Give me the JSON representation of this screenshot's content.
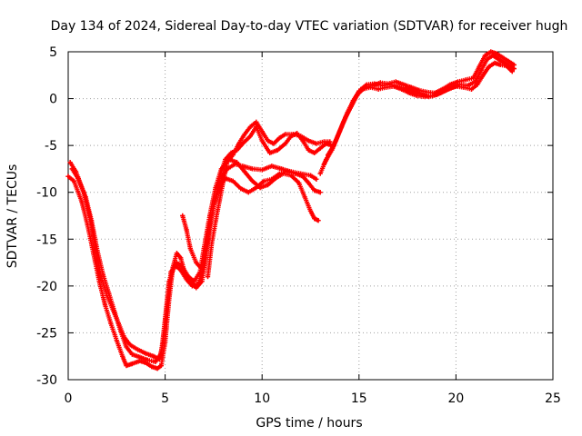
{
  "chart_data": {
    "type": "scatter",
    "title": "Day 134 of 2024, Sidereal Day-to-day VTEC variation (SDTVAR) for receiver hugh",
    "xlabel": "GPS time / hours",
    "ylabel": "SDTVAR / TECUs",
    "xlim": [
      0,
      25
    ],
    "ylim": [
      -30,
      5
    ],
    "xticks": [
      0,
      5,
      10,
      15,
      20,
      25
    ],
    "yticks": [
      5,
      0,
      -5,
      -10,
      -15,
      -20,
      -25,
      -30
    ],
    "grid": true,
    "marker": "+",
    "color": "#ff0000",
    "series": [
      {
        "points": [
          [
            0.0,
            -8.3
          ],
          [
            0.3,
            -8.8
          ],
          [
            0.7,
            -11.0
          ],
          [
            1.0,
            -13.5
          ],
          [
            1.3,
            -16.5
          ],
          [
            1.6,
            -19.5
          ],
          [
            1.9,
            -22.0
          ],
          [
            2.2,
            -24.0
          ],
          [
            2.5,
            -25.8
          ],
          [
            2.8,
            -27.5
          ],
          [
            3.0,
            -28.5
          ],
          [
            3.3,
            -28.3
          ],
          [
            3.7,
            -28.0
          ],
          [
            4.0,
            -28.2
          ],
          [
            4.3,
            -28.6
          ],
          [
            4.6,
            -28.8
          ],
          [
            4.8,
            -28.5
          ],
          [
            5.0,
            -26.0
          ],
          [
            5.2,
            -21.5
          ],
          [
            5.4,
            -18.0
          ],
          [
            5.6,
            -16.5
          ],
          [
            5.8,
            -17.0
          ],
          [
            6.0,
            -18.5
          ],
          [
            6.3,
            -19.5
          ],
          [
            6.6,
            -20.2
          ],
          [
            6.9,
            -19.5
          ],
          [
            7.1,
            -17.0
          ],
          [
            7.3,
            -13.5
          ],
          [
            7.6,
            -10.5
          ],
          [
            7.9,
            -8.5
          ],
          [
            8.2,
            -7.5
          ],
          [
            8.6,
            -7.0
          ],
          [
            9.0,
            -7.2
          ],
          [
            9.5,
            -7.5
          ],
          [
            10.0,
            -7.6
          ],
          [
            10.5,
            -7.2
          ],
          [
            11.0,
            -7.5
          ],
          [
            11.5,
            -7.8
          ],
          [
            12.0,
            -8.0
          ],
          [
            12.5,
            -8.2
          ],
          [
            12.8,
            -8.6
          ]
        ]
      },
      {
        "points": [
          [
            0.1,
            -6.8
          ],
          [
            0.4,
            -7.8
          ],
          [
            0.8,
            -10.0
          ],
          [
            1.1,
            -12.5
          ],
          [
            1.4,
            -15.8
          ],
          [
            1.7,
            -19.0
          ],
          [
            2.0,
            -21.0
          ],
          [
            2.3,
            -22.5
          ],
          [
            2.6,
            -24.0
          ],
          [
            2.9,
            -25.5
          ],
          [
            3.2,
            -26.3
          ],
          [
            3.6,
            -26.8
          ],
          [
            4.0,
            -27.2
          ],
          [
            4.4,
            -27.5
          ],
          [
            4.7,
            -27.8
          ],
          [
            4.9,
            -26.0
          ],
          [
            5.1,
            -22.0
          ],
          [
            5.3,
            -18.5
          ],
          [
            5.6,
            -17.5
          ],
          [
            5.9,
            -18.0
          ],
          [
            6.2,
            -19.0
          ],
          [
            6.5,
            -19.5
          ],
          [
            6.8,
            -18.5
          ],
          [
            7.0,
            -16.0
          ],
          [
            7.3,
            -12.5
          ],
          [
            7.6,
            -9.5
          ],
          [
            7.9,
            -7.5
          ],
          [
            8.3,
            -6.5
          ],
          [
            8.7,
            -6.8
          ],
          [
            9.1,
            -7.8
          ],
          [
            9.5,
            -8.8
          ],
          [
            9.9,
            -9.5
          ],
          [
            10.3,
            -9.2
          ],
          [
            10.7,
            -8.5
          ],
          [
            11.1,
            -8.0
          ],
          [
            11.5,
            -8.2
          ],
          [
            11.9,
            -9.0
          ],
          [
            12.2,
            -10.5
          ],
          [
            12.5,
            -12.0
          ],
          [
            12.7,
            -12.8
          ],
          [
            12.9,
            -13.0
          ]
        ]
      },
      {
        "points": [
          [
            0.2,
            -7.5
          ],
          [
            0.5,
            -8.5
          ],
          [
            0.9,
            -10.5
          ],
          [
            1.2,
            -13.0
          ],
          [
            1.5,
            -16.2
          ],
          [
            1.8,
            -18.8
          ],
          [
            2.1,
            -20.8
          ],
          [
            2.4,
            -22.8
          ],
          [
            2.7,
            -24.8
          ],
          [
            3.0,
            -26.5
          ],
          [
            3.3,
            -27.3
          ],
          [
            3.7,
            -27.6
          ],
          [
            4.1,
            -27.9
          ],
          [
            4.5,
            -28.1
          ],
          [
            4.8,
            -27.2
          ],
          [
            5.0,
            -23.5
          ],
          [
            5.2,
            -19.5
          ],
          [
            5.5,
            -17.8
          ],
          [
            5.8,
            -18.3
          ],
          [
            6.1,
            -19.3
          ],
          [
            6.4,
            -20.0
          ],
          [
            6.7,
            -19.8
          ],
          [
            7.0,
            -17.8
          ],
          [
            7.2,
            -14.5
          ],
          [
            7.5,
            -11.5
          ],
          [
            7.8,
            -9.5
          ],
          [
            8.1,
            -8.5
          ],
          [
            8.5,
            -8.8
          ],
          [
            8.9,
            -9.6
          ],
          [
            9.3,
            -10.0
          ],
          [
            9.7,
            -9.5
          ],
          [
            10.1,
            -8.8
          ],
          [
            10.5,
            -8.6
          ],
          [
            10.9,
            -8.0
          ],
          [
            11.3,
            -7.8
          ],
          [
            11.7,
            -8.0
          ],
          [
            12.1,
            -8.3
          ],
          [
            12.4,
            -9.0
          ],
          [
            12.7,
            -9.8
          ],
          [
            13.0,
            -10.0
          ]
        ]
      },
      {
        "points": [
          [
            5.9,
            -12.5
          ],
          [
            6.1,
            -14.0
          ],
          [
            6.3,
            -16.0
          ],
          [
            6.6,
            -17.5
          ],
          [
            6.9,
            -18.2
          ],
          [
            7.2,
            -15.0
          ],
          [
            7.5,
            -11.5
          ],
          [
            7.8,
            -8.5
          ],
          [
            8.1,
            -6.5
          ],
          [
            8.4,
            -5.8
          ],
          [
            8.7,
            -5.5
          ],
          [
            9.0,
            -4.8
          ],
          [
            9.4,
            -4.0
          ],
          [
            9.7,
            -3.0
          ],
          [
            10.0,
            -4.5
          ],
          [
            10.4,
            -5.8
          ],
          [
            10.8,
            -5.5
          ],
          [
            11.2,
            -4.8
          ],
          [
            11.5,
            -4.0
          ],
          [
            11.8,
            -3.7
          ],
          [
            12.1,
            -4.5
          ],
          [
            12.4,
            -5.5
          ],
          [
            12.7,
            -5.8
          ],
          [
            13.0,
            -5.3
          ],
          [
            13.3,
            -4.8
          ],
          [
            13.6,
            -5.0
          ]
        ]
      },
      {
        "points": [
          [
            7.2,
            -19.0
          ],
          [
            7.4,
            -15.5
          ],
          [
            7.7,
            -12.0
          ],
          [
            8.0,
            -8.8
          ],
          [
            8.2,
            -6.8
          ],
          [
            8.5,
            -6.0
          ],
          [
            8.8,
            -4.8
          ],
          [
            9.1,
            -3.8
          ],
          [
            9.4,
            -3.0
          ],
          [
            9.7,
            -2.5
          ],
          [
            10.0,
            -3.5
          ],
          [
            10.3,
            -4.5
          ],
          [
            10.6,
            -4.8
          ],
          [
            10.9,
            -4.2
          ],
          [
            11.2,
            -3.8
          ],
          [
            11.6,
            -3.8
          ],
          [
            12.0,
            -4.0
          ],
          [
            12.4,
            -4.5
          ],
          [
            12.8,
            -4.8
          ],
          [
            13.2,
            -4.6
          ],
          [
            13.5,
            -4.6
          ]
        ]
      },
      {
        "points": [
          [
            13.0,
            -8.0
          ],
          [
            13.3,
            -6.5
          ],
          [
            13.6,
            -5.5
          ],
          [
            13.9,
            -4.0
          ],
          [
            14.2,
            -2.5
          ],
          [
            14.5,
            -1.2
          ],
          [
            14.8,
            0.0
          ],
          [
            15.1,
            1.0
          ],
          [
            15.4,
            1.5
          ],
          [
            15.8,
            1.6
          ],
          [
            16.2,
            1.4
          ],
          [
            16.6,
            1.5
          ],
          [
            17.0,
            1.3
          ],
          [
            17.4,
            1.1
          ],
          [
            17.8,
            0.8
          ],
          [
            18.2,
            0.5
          ],
          [
            18.6,
            0.2
          ],
          [
            19.0,
            0.4
          ],
          [
            19.4,
            0.8
          ],
          [
            19.8,
            1.2
          ],
          [
            20.2,
            1.5
          ],
          [
            20.6,
            1.4
          ],
          [
            21.0,
            1.8
          ],
          [
            21.3,
            3.0
          ],
          [
            21.6,
            4.2
          ],
          [
            21.9,
            4.6
          ],
          [
            22.2,
            4.2
          ],
          [
            22.5,
            3.8
          ],
          [
            22.8,
            3.4
          ],
          [
            23.0,
            3.2
          ]
        ]
      },
      {
        "points": [
          [
            13.2,
            -7.0
          ],
          [
            13.5,
            -5.8
          ],
          [
            13.8,
            -4.5
          ],
          [
            14.1,
            -3.0
          ],
          [
            14.4,
            -1.5
          ],
          [
            14.7,
            -0.2
          ],
          [
            15.0,
            0.8
          ],
          [
            15.3,
            1.2
          ],
          [
            15.7,
            1.4
          ],
          [
            16.1,
            1.7
          ],
          [
            16.5,
            1.6
          ],
          [
            16.9,
            1.8
          ],
          [
            17.3,
            1.5
          ],
          [
            17.7,
            1.2
          ],
          [
            18.1,
            0.9
          ],
          [
            18.5,
            0.7
          ],
          [
            18.9,
            0.6
          ],
          [
            19.3,
            1.0
          ],
          [
            19.7,
            1.5
          ],
          [
            20.1,
            1.8
          ],
          [
            20.5,
            2.0
          ],
          [
            20.9,
            2.2
          ],
          [
            21.2,
            3.4
          ],
          [
            21.5,
            4.6
          ],
          [
            21.8,
            5.0
          ],
          [
            22.1,
            4.8
          ],
          [
            22.4,
            4.4
          ],
          [
            22.7,
            4.0
          ],
          [
            23.0,
            3.6
          ]
        ]
      },
      {
        "points": [
          [
            13.4,
            -6.0
          ],
          [
            13.7,
            -5.0
          ],
          [
            14.0,
            -3.5
          ],
          [
            14.3,
            -2.0
          ],
          [
            14.6,
            -0.8
          ],
          [
            14.9,
            0.4
          ],
          [
            15.2,
            1.0
          ],
          [
            15.6,
            1.2
          ],
          [
            16.0,
            1.0
          ],
          [
            16.4,
            1.2
          ],
          [
            16.8,
            1.3
          ],
          [
            17.2,
            1.0
          ],
          [
            17.6,
            0.6
          ],
          [
            18.0,
            0.3
          ],
          [
            18.4,
            0.2
          ],
          [
            18.8,
            0.3
          ],
          [
            19.2,
            0.6
          ],
          [
            19.6,
            1.0
          ],
          [
            20.0,
            1.3
          ],
          [
            20.4,
            1.2
          ],
          [
            20.8,
            1.0
          ],
          [
            21.1,
            1.5
          ],
          [
            21.4,
            2.5
          ],
          [
            21.7,
            3.4
          ],
          [
            22.0,
            3.8
          ],
          [
            22.3,
            3.6
          ],
          [
            22.6,
            3.5
          ],
          [
            22.9,
            2.9
          ]
        ]
      }
    ]
  }
}
